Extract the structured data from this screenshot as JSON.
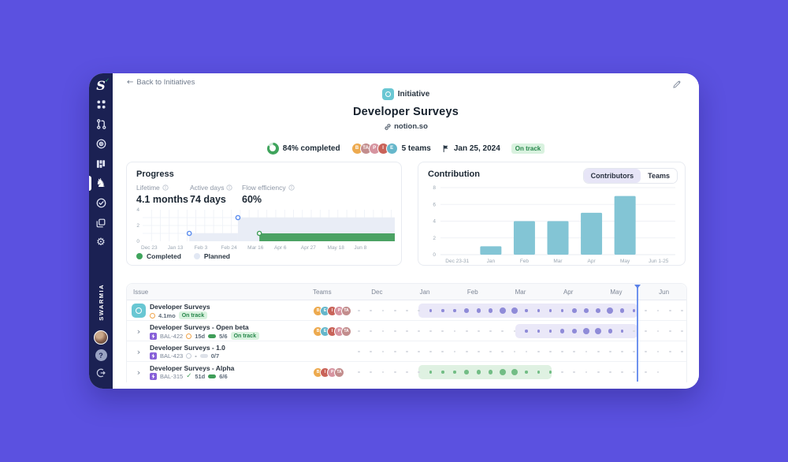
{
  "colors": {
    "canvas_bg": "#5b51e0",
    "sidebar_bg": "#1b2153",
    "accent_green": "#3fa45c",
    "bar_teal": "#83c5d5",
    "dot_purple": "#8f8bd8",
    "dot_green": "#72bd85",
    "dot_gray": "#d7dae1",
    "band_purple": "#eae8f8",
    "band_green": "#dff1e2",
    "today_line": "#6f93ee",
    "status_badge_bg": "#d9f2df",
    "status_badge_text": "#27874b"
  },
  "sidebar": {
    "brand": "SWARMIA",
    "active_item": "initiatives",
    "items": [
      "swarmia-logo",
      "teams",
      "pull-requests",
      "flow",
      "boards",
      "initiatives",
      "deliver",
      "projects",
      "settings",
      "user-avatar",
      "help",
      "logout"
    ]
  },
  "topbar": {
    "back_label": "Back to Initiatives"
  },
  "hero": {
    "type_label": "Initiative",
    "title": "Developer Surveys",
    "link_label": "notion.so",
    "completed_label": "84% completed",
    "completed_pct": 84,
    "teams_label": "5 teams",
    "team_avatars": [
      {
        "initials": "B",
        "color": "#edaa4f"
      },
      {
        "initials": "TA",
        "color": "#c38d8d"
      },
      {
        "initials": "P",
        "color": "#d694a0"
      },
      {
        "initials": "I",
        "color": "#c96359"
      },
      {
        "initials": "E",
        "color": "#66b7cb"
      }
    ],
    "date": "Jan 25, 2024",
    "status": "On track"
  },
  "progress_panel": {
    "title": "Progress",
    "metrics": [
      {
        "label": "Lifetime",
        "value": "4.1 months"
      },
      {
        "label": "Active days",
        "value": "74 days"
      },
      {
        "label": "Flow efficiency",
        "value": "60%"
      }
    ],
    "legend": [
      {
        "label": "Completed",
        "color": "#3fa45c"
      },
      {
        "label": "Planned",
        "color": "#e2e8f4"
      }
    ],
    "chart_data": {
      "type": "area",
      "x_ticks": [
        "Dec 23",
        "Jan 13",
        "Feb 3",
        "Feb 24",
        "Mar 16",
        "Apr 6",
        "Apr 27",
        "May 18",
        "Jun 8"
      ],
      "y_ticks": [
        4,
        2,
        0
      ],
      "y_max": 4,
      "planned_steps": [
        {
          "from_frac": 0.185,
          "to_frac": 0.378,
          "value": 1
        },
        {
          "from_frac": 0.378,
          "to_frac": 1,
          "value": 3
        }
      ],
      "completed_segment": {
        "from_frac": 0.463,
        "to_frac": 1,
        "value": 1
      },
      "planned_color": "#e9edf6",
      "completed_color": "#4ba263",
      "marker_stroke_planned": "#5b8def",
      "marker_stroke_completed": "#3f9d58"
    }
  },
  "contribution_panel": {
    "title": "Contribution",
    "toggle": [
      {
        "label": "Contributors",
        "active": true
      },
      {
        "label": "Teams",
        "active": false
      }
    ],
    "chart_data": {
      "type": "bar",
      "categories": [
        "Dec 23-31",
        "Jan",
        "Feb",
        "Mar",
        "Apr",
        "May",
        "Jun 1-25"
      ],
      "values": [
        0,
        1,
        4,
        4,
        5,
        7,
        0
      ],
      "ylim": [
        0,
        8
      ],
      "y_ticks": [
        0,
        2,
        4,
        6,
        8
      ],
      "bar_color": "#83c5d5"
    }
  },
  "issue_table": {
    "columns": {
      "issue": "Issue",
      "teams": "Teams"
    },
    "months": [
      "Dec",
      "Jan",
      "Feb",
      "Mar",
      "Apr",
      "May",
      "Jun"
    ],
    "weeks_per_row": 28,
    "today_week": 23.8,
    "avatar_colors": {
      "B": "#edaa4f",
      "TA": "#c38d8d",
      "P": "#d694a0",
      "I": "#c96359",
      "E": "#66b7cb"
    },
    "rows": [
      {
        "type": "initiative",
        "title": "Developer Surveys",
        "duration": "4.1mo",
        "duration_state": "active",
        "status": "On track",
        "teams": [
          "B",
          "E",
          "I",
          "P",
          "TA"
        ],
        "band": {
          "start": 5.5,
          "end": 23.8,
          "color": "purple"
        },
        "dots": [
          "g",
          "g",
          "g",
          "g",
          "g",
          "g",
          "p1",
          "p1",
          "p1",
          "p2",
          "p2",
          "p2",
          "p3",
          "p3",
          "p1",
          "p1",
          "p1",
          "p1",
          "p2",
          "p2",
          "p2",
          "p3",
          "p2",
          "p1",
          "g",
          "g",
          "g",
          "g"
        ]
      },
      {
        "type": "epic",
        "key": "BAL-422",
        "title": "Developer Surveys - Open beta",
        "duration": "15d",
        "duration_state": "active",
        "progress": "5/6",
        "progress_state": "done",
        "status": "On track",
        "teams": [
          "B",
          "E",
          "I",
          "P",
          "TA"
        ],
        "band": {
          "start": 13.6,
          "end": 23.8,
          "color": "purple"
        },
        "dots": [
          "g",
          "g",
          "g",
          "g",
          "g",
          "g",
          "g",
          "g",
          "g",
          "g",
          "g",
          "g",
          "g",
          "g",
          "p1",
          "p1",
          "p1",
          "p2",
          "p2",
          "p3",
          "p3",
          "p2",
          "p1",
          "g",
          "g",
          "g",
          "g",
          "g"
        ]
      },
      {
        "type": "epic",
        "key": "BAL-423",
        "title": "Developer Surveys - 1.0",
        "duration": "-",
        "duration_state": "none",
        "progress": "0/7",
        "progress_state": "empty",
        "teams": [],
        "band": null,
        "dots": [
          "g",
          "g",
          "g",
          "g",
          "g",
          "g",
          "g",
          "g",
          "g",
          "g",
          "g",
          "g",
          "g",
          "g",
          "g",
          "g",
          "g",
          "g",
          "g",
          "g",
          "g",
          "g",
          "g",
          "g",
          "g",
          "g",
          "g",
          "g"
        ]
      },
      {
        "type": "epic",
        "key": "BAL-315",
        "title": "Developer Surveys - Alpha",
        "duration": "51d",
        "duration_state": "done",
        "progress": "6/6",
        "progress_state": "done",
        "teams": [
          "B",
          "I",
          "P",
          "TA"
        ],
        "band": {
          "start": 5.5,
          "end": 16.6,
          "color": "green"
        },
        "dots": [
          "g",
          "g",
          "g",
          "g",
          "g",
          "g",
          "n1",
          "n1",
          "n1",
          "n2",
          "n2",
          "n2",
          "n3",
          "n3",
          "n1",
          "n1",
          "n1",
          "g",
          "g",
          "g",
          "g",
          "g",
          "g",
          "g",
          "g",
          "g",
          "x",
          "x"
        ]
      }
    ]
  }
}
